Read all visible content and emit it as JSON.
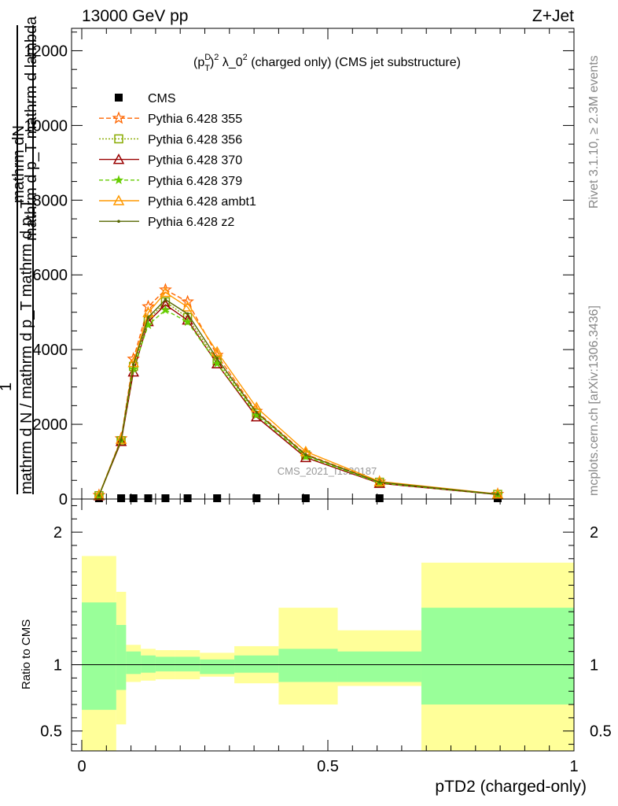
{
  "header": {
    "left": "13000 GeV pp",
    "right": "Z+Jet"
  },
  "side": {
    "rivet": "Rivet 3.1.10, ≥ 2.3M events",
    "mcplots": "mcplots.cern.ch [arXiv:1306.3436]"
  },
  "watermark": "CMS_2021_I1920187",
  "colors": {
    "cms": "#000000",
    "p355": "#ff6600",
    "p356": "#88aa00",
    "p370": "#990000",
    "p379": "#66cc00",
    "ambt1": "#ff9900",
    "z2": "#556600",
    "band_green": "#99ff99",
    "band_yellow": "#ffff99"
  },
  "chart_data": [
    {
      "type": "line",
      "title": "(p_T^D)^2 λ_0^2 (charged only) (CMS jet substructure)",
      "title_parts": {
        "pre": "(p",
        "sup1": "D",
        "sub1": "T",
        "mid": ")",
        "sup2": "2",
        "lam": " λ_0",
        "sup3": "2",
        "post": " (charged only) (CMS jet substructure)"
      },
      "ylabel_top": "mathrm dN",
      "ylabel_top2": "mathrm d p_T mathrm d lambda",
      "ylabel_one": "1",
      "ylabel_bottom": "mathrm d N / mathrm d p_T mathrm d p_T",
      "xlim": [
        0,
        1
      ],
      "ylim": [
        0,
        12600
      ],
      "yticks": [
        {
          "v": 0,
          "label": "0"
        },
        {
          "v": 2000,
          "label": "2000"
        },
        {
          "v": 4000,
          "label": "4000"
        },
        {
          "v": 6000,
          "label": "6000"
        },
        {
          "v": 8000,
          "label": "8000"
        },
        {
          "v": 10000,
          "label": "10000"
        },
        {
          "v": 12000,
          "label": "12000"
        }
      ],
      "x": [
        0.035,
        0.08,
        0.105,
        0.135,
        0.17,
        0.215,
        0.275,
        0.355,
        0.455,
        0.605,
        0.845
      ],
      "series": [
        {
          "name": "CMS",
          "key": "cms",
          "marker": "square",
          "dash": "",
          "values": [
            20,
            20,
            20,
            20,
            20,
            20,
            20,
            20,
            20,
            20,
            20
          ]
        },
        {
          "name": "Pythia 6.428 355",
          "key": "p355",
          "marker": "star",
          "dash": "6,3",
          "values": [
            100,
            1620,
            3750,
            5150,
            5600,
            5280,
            3850,
            2350,
            1200,
            460,
            130
          ]
        },
        {
          "name": "Pythia 6.428 356",
          "key": "p356",
          "marker": "opensquare",
          "dash": "2,2",
          "values": [
            90,
            1560,
            3550,
            4800,
            5280,
            4860,
            3700,
            2300,
            1180,
            450,
            125
          ]
        },
        {
          "name": "Pythia 6.428 370",
          "key": "p370",
          "marker": "triangle",
          "dash": "",
          "values": [
            90,
            1540,
            3400,
            4750,
            5200,
            4790,
            3620,
            2200,
            1110,
            420,
            120
          ]
        },
        {
          "name": "Pythia 6.428 379",
          "key": "p379",
          "marker": "smallstar",
          "dash": "5,3",
          "values": [
            90,
            1570,
            3480,
            4660,
            5060,
            4740,
            3630,
            2250,
            1140,
            430,
            122
          ]
        },
        {
          "name": "Pythia 6.428 ambt1",
          "key": "ambt1",
          "marker": "triangle",
          "dash": "",
          "values": [
            100,
            1600,
            3650,
            4990,
            5530,
            5140,
            3940,
            2450,
            1270,
            470,
            135
          ]
        },
        {
          "name": "Pythia 6.428 z2",
          "key": "z2",
          "marker": "dot",
          "dash": "",
          "values": [
            95,
            1580,
            3600,
            4860,
            5340,
            4960,
            3760,
            2320,
            1180,
            450,
            128
          ]
        }
      ]
    },
    {
      "type": "area",
      "ylabel": "Ratio to CMS",
      "xlabel": "pTD2 (charged-only)",
      "xlim": [
        0,
        1
      ],
      "ylim": [
        0.35,
        2.25
      ],
      "yticks": [
        {
          "v": 0.5,
          "label": "0.5"
        },
        {
          "v": 1,
          "label": "1"
        },
        {
          "v": 2,
          "label": "2"
        }
      ],
      "xticks": [
        {
          "v": 0,
          "label": "0"
        },
        {
          "v": 0.5,
          "label": "0.5"
        },
        {
          "v": 1,
          "label": "1"
        }
      ],
      "bins": [
        {
          "lo": 0.0,
          "hi": 0.07,
          "g": [
            0.66,
            1.47
          ],
          "y": [
            0.35,
            1.82
          ]
        },
        {
          "lo": 0.07,
          "hi": 0.09,
          "g": [
            0.81,
            1.3
          ],
          "y": [
            0.55,
            1.55
          ]
        },
        {
          "lo": 0.09,
          "hi": 0.12,
          "g": [
            0.93,
            1.1
          ],
          "y": [
            0.87,
            1.15
          ]
        },
        {
          "lo": 0.12,
          "hi": 0.15,
          "g": [
            0.94,
            1.07
          ],
          "y": [
            0.88,
            1.12
          ]
        },
        {
          "lo": 0.15,
          "hi": 0.19,
          "g": [
            0.95,
            1.06
          ],
          "y": [
            0.89,
            1.11
          ]
        },
        {
          "lo": 0.19,
          "hi": 0.24,
          "g": [
            0.95,
            1.06
          ],
          "y": [
            0.89,
            1.11
          ]
        },
        {
          "lo": 0.24,
          "hi": 0.31,
          "g": [
            0.93,
            1.04
          ],
          "y": [
            0.91,
            1.09
          ]
        },
        {
          "lo": 0.31,
          "hi": 0.4,
          "g": [
            0.94,
            1.07
          ],
          "y": [
            0.86,
            1.14
          ]
        },
        {
          "lo": 0.4,
          "hi": 0.52,
          "g": [
            0.87,
            1.12
          ],
          "y": [
            0.7,
            1.43
          ]
        },
        {
          "lo": 0.52,
          "hi": 0.69,
          "g": [
            0.87,
            1.1
          ],
          "y": [
            0.84,
            1.26
          ]
        },
        {
          "lo": 0.69,
          "hi": 1.0,
          "g": [
            0.7,
            1.43
          ],
          "y": [
            0.35,
            1.77
          ]
        }
      ],
      "reference": 1
    }
  ]
}
